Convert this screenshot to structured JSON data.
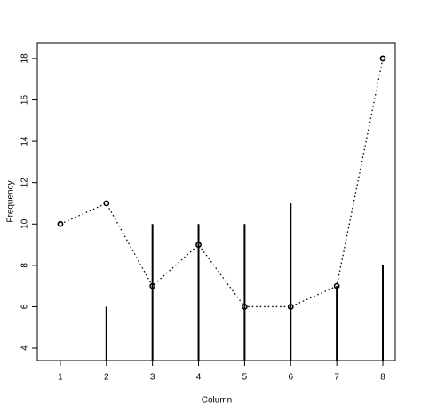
{
  "chart_data": {
    "type": "line",
    "x_label": "Column",
    "y_label": "Frequency",
    "x": [
      1,
      2,
      3,
      4,
      5,
      6,
      7,
      8
    ],
    "series": [
      {
        "style": "points-dotted",
        "color": "#000000",
        "values": [
          10,
          11,
          7,
          9,
          6,
          6,
          7,
          18
        ]
      },
      {
        "style": "spikes",
        "color": "#000000",
        "values": [
          null,
          6,
          10,
          10,
          10,
          11,
          7,
          8
        ]
      }
    ],
    "xlim": [
      0.5,
      8.27
    ],
    "ylim": [
      3.4,
      18.77
    ],
    "xticks": [
      1,
      2,
      3,
      4,
      5,
      6,
      7,
      8
    ],
    "yticks": [
      4,
      6,
      8,
      10,
      12,
      14,
      16,
      18
    ],
    "grid": false
  }
}
